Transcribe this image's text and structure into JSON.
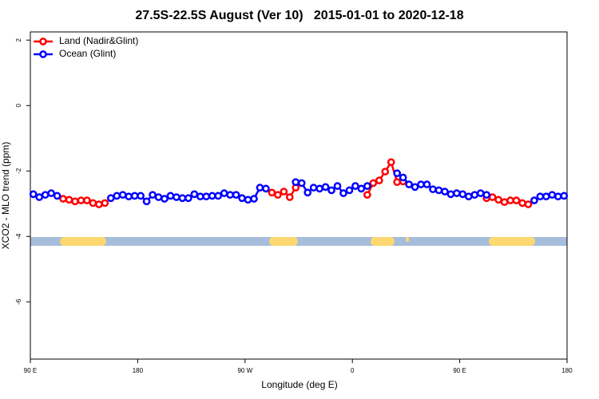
{
  "chart_data": {
    "type": "line",
    "title": "27.5S-22.5S August (Ver 10)   2015-01-01 to 2020-12-18",
    "x_label": "Longitude (deg E)",
    "y_label": "XCO2 - MLO trend (ppm)",
    "xlim": [
      90,
      540
    ],
    "ylim": [
      -7.75,
      2.25
    ],
    "xticks": [
      {
        "value": 90,
        "label": "90 E"
      },
      180,
      {
        "value": 270,
        "label": "90 W"
      },
      {
        "value": 360,
        "label": "0"
      },
      {
        "value": 450,
        "label": "90 E"
      },
      {
        "value": 540,
        "label": "180"
      }
    ],
    "yticks": [
      2,
      0,
      -2,
      -4,
      -6
    ],
    "legend": "top-left",
    "x": [
      92.5,
      97.5,
      102.5,
      107.5,
      112.5,
      117.5,
      122.5,
      127.5,
      132.5,
      137.5,
      142.5,
      147.5,
      152.5,
      157.5,
      162.5,
      167.5,
      172.5,
      177.5,
      182.5,
      187.5,
      192.5,
      197.5,
      202.5,
      207.5,
      212.5,
      217.5,
      222.5,
      227.5,
      232.5,
      237.5,
      242.5,
      247.5,
      252.5,
      257.5,
      262.5,
      267.5,
      272.5,
      277.5,
      282.5,
      287.5,
      292.5,
      297.5,
      302.5,
      307.5,
      312.5,
      317.5,
      322.5,
      327.5,
      332.5,
      337.5,
      342.5,
      347.5,
      352.5,
      357.5,
      362.5,
      367.5,
      372.5,
      377.5,
      382.5,
      387.5,
      392.5,
      397.5,
      402.5,
      407.5,
      412.5,
      417.5,
      422.5,
      427.5,
      432.5,
      437.5,
      442.5,
      447.5,
      452.5,
      457.5,
      462.5,
      467.5,
      472.5,
      477.5,
      482.5,
      487.5,
      492.5,
      497.5,
      502.5,
      507.5,
      512.5,
      517.5,
      522.5,
      527.5,
      532.5,
      537.5
    ],
    "series": [
      {
        "name": "Land (Nadir&Glint)",
        "color": "#ff0000",
        "values": [
          null,
          null,
          null,
          null,
          null,
          -2.85,
          -2.88,
          -2.93,
          -2.9,
          -2.9,
          -2.98,
          -3.02,
          -2.98,
          null,
          null,
          null,
          null,
          null,
          null,
          null,
          null,
          null,
          null,
          null,
          null,
          null,
          null,
          null,
          null,
          null,
          null,
          null,
          null,
          null,
          null,
          null,
          null,
          null,
          null,
          null,
          -2.66,
          -2.73,
          -2.63,
          -2.8,
          -2.51,
          null,
          null,
          null,
          null,
          null,
          null,
          null,
          null,
          null,
          null,
          null,
          -2.73,
          -2.37,
          -2.29,
          -2.02,
          -1.73,
          -2.34,
          -2.32,
          null,
          null,
          null,
          null,
          null,
          null,
          null,
          null,
          null,
          null,
          null,
          null,
          null,
          -2.83,
          -2.8,
          -2.88,
          -2.95,
          -2.9,
          -2.9,
          -2.98,
          -3.02,
          null,
          null,
          null,
          null,
          null,
          null
        ]
      },
      {
        "name": "Ocean (Glint)",
        "color": "#0000ff",
        "values": [
          -2.71,
          -2.8,
          -2.73,
          -2.68,
          -2.76,
          null,
          null,
          null,
          null,
          null,
          null,
          null,
          null,
          -2.83,
          -2.76,
          -2.73,
          -2.78,
          -2.76,
          -2.76,
          -2.93,
          -2.73,
          -2.8,
          -2.85,
          -2.76,
          -2.8,
          -2.83,
          -2.83,
          -2.71,
          -2.78,
          -2.78,
          -2.76,
          -2.76,
          -2.68,
          -2.73,
          -2.73,
          -2.83,
          -2.88,
          -2.85,
          -2.51,
          -2.54,
          null,
          null,
          null,
          null,
          -2.34,
          -2.37,
          -2.66,
          -2.51,
          -2.54,
          -2.49,
          -2.59,
          -2.46,
          -2.68,
          -2.59,
          -2.46,
          -2.54,
          -2.46,
          null,
          null,
          null,
          null,
          -2.07,
          -2.2,
          -2.41,
          -2.49,
          -2.41,
          -2.41,
          -2.56,
          -2.59,
          -2.63,
          -2.71,
          -2.68,
          -2.71,
          -2.78,
          -2.73,
          -2.68,
          -2.73,
          null,
          null,
          null,
          null,
          null,
          null,
          null,
          -2.9,
          -2.78,
          -2.78,
          -2.73,
          -2.78,
          -2.76
        ]
      }
    ]
  }
}
